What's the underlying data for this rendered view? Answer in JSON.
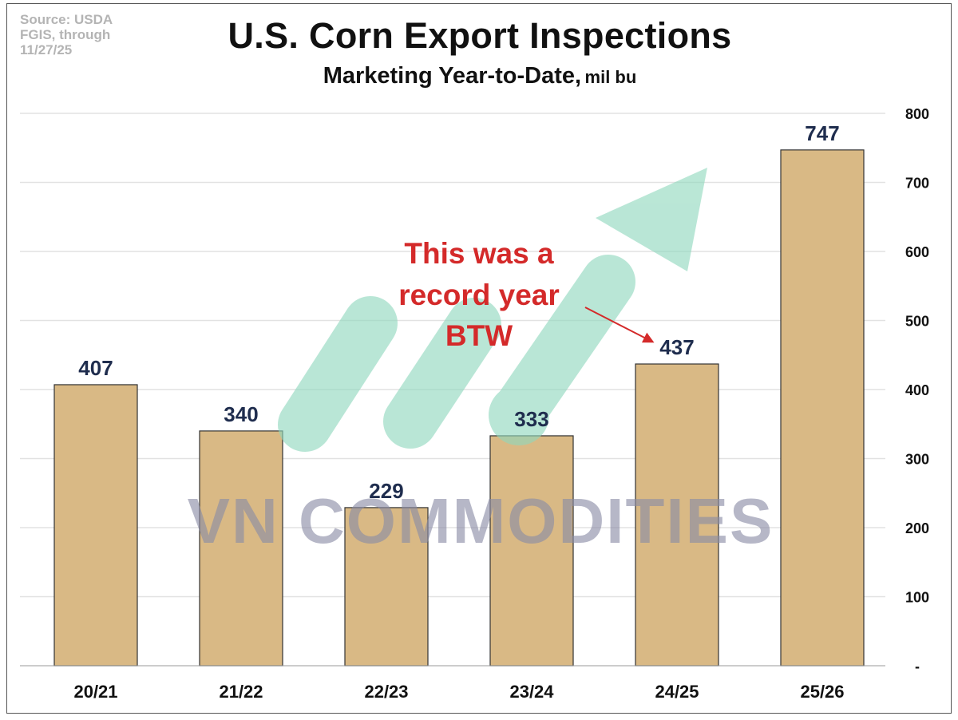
{
  "source_lines": [
    "Source: USDA",
    "FGIS, through",
    "11/27/25"
  ],
  "title": "U.S. Corn Export Inspections",
  "subtitle": "Marketing Year-to-Date,",
  "subtitle_unit": "mil bu",
  "watermark": "VN COMMODITIES",
  "annotation": [
    "This was a",
    "record year",
    "BTW"
  ],
  "colors": {
    "bar": "#d9b985",
    "bar_outline": "#333333",
    "label": "#1f2d4e",
    "annotation": "#d42a2a",
    "arrow": "#8fd8bd",
    "grid": "#e2e2e2",
    "watermark": "#8a8ca6"
  },
  "chart_data": {
    "type": "bar",
    "title": "U.S. Corn Export Inspections",
    "subtitle": "Marketing Year-to-Date, mil bu",
    "categories": [
      "20/21",
      "21/22",
      "22/23",
      "23/24",
      "24/25",
      "25/26"
    ],
    "values": [
      407,
      340,
      229,
      333,
      437,
      747
    ],
    "data_labels": [
      "407",
      "340",
      "229",
      "333",
      "437",
      "747"
    ],
    "ylim": [
      0,
      800
    ],
    "yticks": [
      0,
      100,
      200,
      300,
      400,
      500,
      600,
      700,
      800
    ],
    "ytick_labels": [
      "-",
      "100",
      "200",
      "300",
      "400",
      "500",
      "600",
      "700",
      "800"
    ],
    "y_axis_side": "right",
    "grid": true,
    "xlabel": "",
    "ylabel": "",
    "annotation_target": "24/25"
  }
}
